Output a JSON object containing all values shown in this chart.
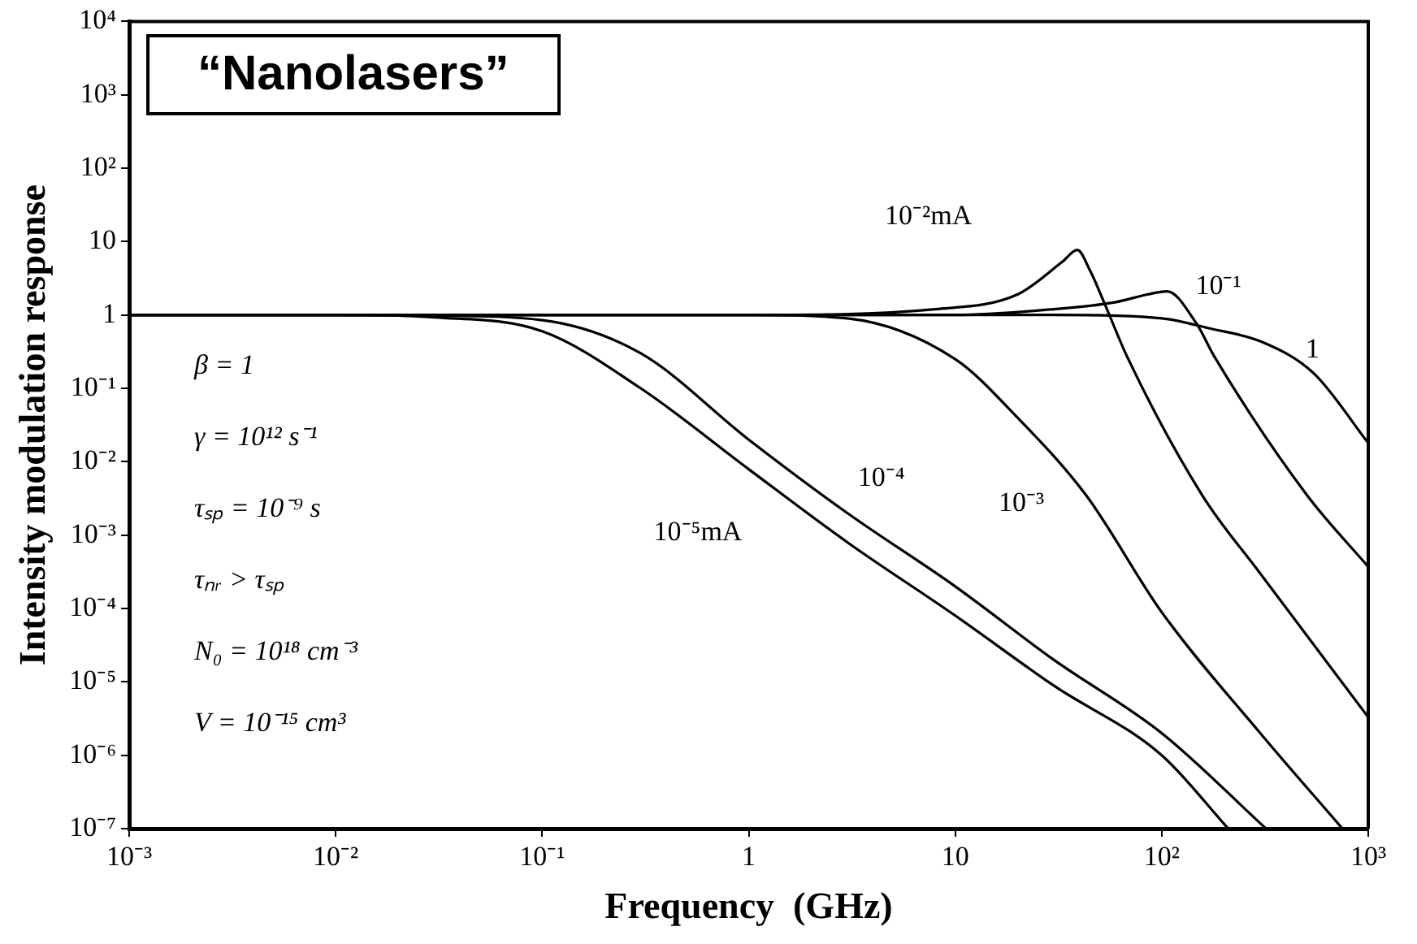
{
  "chart_data": {
    "type": "line",
    "title": "“Nanolasers”",
    "xlabel": "Frequency  (GHz)",
    "ylabel": "Intensity modulation response",
    "log": "xy",
    "xlim": [
      0.001,
      1000
    ],
    "ylim": [
      1e-07,
      10000
    ],
    "xticks": [
      {
        "value": 0.001,
        "label": "10⁻³"
      },
      {
        "value": 0.01,
        "label": "10⁻²"
      },
      {
        "value": 0.1,
        "label": "10⁻¹"
      },
      1,
      10,
      {
        "value": 100,
        "label": "10²"
      },
      {
        "value": 1000,
        "label": "10³"
      }
    ],
    "yticks": [
      {
        "value": 1e-07,
        "label": "10⁻⁷"
      },
      {
        "value": 1e-06,
        "label": "10⁻⁶"
      },
      {
        "value": 1e-05,
        "label": "10⁻⁵"
      },
      {
        "value": 0.0001,
        "label": "10⁻⁴"
      },
      {
        "value": 0.001,
        "label": "10⁻³"
      },
      {
        "value": 0.01,
        "label": "10⁻²"
      },
      {
        "value": 0.1,
        "label": "10⁻¹"
      },
      1,
      10,
      {
        "value": 100,
        "label": "10²"
      },
      {
        "value": 1000,
        "label": "10³"
      },
      {
        "value": 10000,
        "label": "10⁴"
      }
    ],
    "series": [
      {
        "name": "10⁻⁵mA",
        "color": "#000000",
        "x": [
          0.001,
          0.01,
          0.03,
          0.1,
          0.3,
          1,
          3,
          10,
          30,
          100,
          210
        ],
        "values": [
          1,
          1,
          0.93,
          0.6,
          0.1,
          0.0079,
          0.0008,
          8e-05,
          8.9e-06,
          1e-06,
          1e-07
        ]
      },
      {
        "name": "10⁻⁴",
        "color": "#000000",
        "x": [
          0.001,
          0.01,
          0.03,
          0.1,
          0.3,
          1,
          3,
          10,
          30,
          100,
          320
        ],
        "values": [
          1,
          1,
          0.98,
          0.85,
          0.3,
          0.02,
          0.002,
          0.0002,
          2e-05,
          2e-06,
          1e-07
        ]
      },
      {
        "name": "10⁻³",
        "color": "#000000",
        "x": [
          0.001,
          1,
          3,
          10,
          20,
          43,
          100,
          300,
          750
        ],
        "values": [
          1,
          1,
          0.9,
          0.25,
          0.04,
          0.0035,
          8.9e-05,
          2e-06,
          1e-07
        ]
      },
      {
        "name": "10⁻²mA",
        "color": "#000000",
        "x": [
          0.001,
          1,
          8,
          20,
          33,
          39,
          45,
          52,
          68,
          157,
          300,
          1000
        ],
        "values": [
          1,
          1,
          1.2,
          1.9,
          5.3,
          7.7,
          4,
          1.6,
          0.27,
          0.0035,
          0.0003,
          3.3e-06
        ]
      },
      {
        "name": "10⁻¹",
        "color": "#000000",
        "x": [
          0.001,
          10,
          30,
          60,
          85,
          106,
          147,
          180,
          505,
          1000
        ],
        "values": [
          1,
          1,
          1.2,
          1.5,
          1.9,
          2.1,
          0.77,
          0.27,
          0.0035,
          0.00037
        ]
      },
      {
        "name": "1",
        "color": "#000000",
        "x": [
          0.001,
          30,
          100,
          169,
          305,
          545,
          1000
        ],
        "values": [
          1,
          1,
          0.9,
          0.66,
          0.43,
          0.16,
          0.018
        ]
      }
    ],
    "annotations": [
      "β = 1",
      "γ  =  10¹² s⁻¹",
      "τₛₚ =  10⁻⁹ s",
      "τₙᵣ > τₛₚ",
      "N₀ =  10¹⁸ cm⁻³",
      "V = 10⁻¹⁵ cm³"
    ]
  }
}
